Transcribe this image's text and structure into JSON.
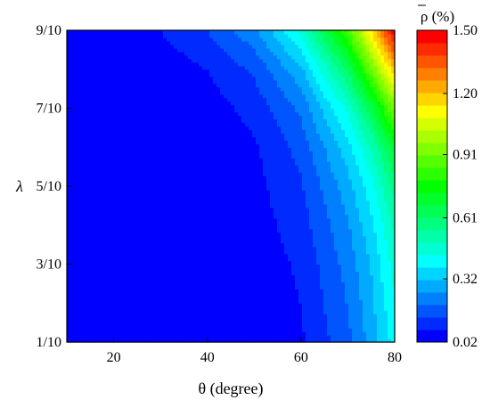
{
  "chart_data": {
    "type": "contour",
    "title": "",
    "xlabel": "θ (degree)",
    "ylabel": "λ",
    "xlim": [
      10,
      80
    ],
    "ylim": [
      0.1,
      0.9
    ],
    "x_ticks": [
      20,
      40,
      60,
      80
    ],
    "x_tick_labels": [
      "20",
      "40",
      "60",
      "80"
    ],
    "y_ticks": [
      0.1,
      0.3,
      0.5,
      0.7,
      0.9
    ],
    "y_tick_labels": [
      "1/10",
      "3/10",
      "5/10",
      "7/10",
      "9/10"
    ],
    "x": [
      10,
      20,
      30,
      40,
      50,
      60,
      70,
      75,
      80
    ],
    "y": [
      0.1,
      0.2,
      0.3,
      0.4,
      0.5,
      0.6,
      0.7,
      0.8,
      0.9
    ],
    "z": [
      [
        0.0,
        0.0,
        0.01,
        0.02,
        0.03,
        0.07,
        0.18,
        0.28,
        0.4
      ],
      [
        0.0,
        0.0,
        0.01,
        0.02,
        0.04,
        0.08,
        0.2,
        0.3,
        0.43
      ],
      [
        0.0,
        0.0,
        0.01,
        0.02,
        0.04,
        0.09,
        0.22,
        0.32,
        0.46
      ],
      [
        0.0,
        0.0,
        0.01,
        0.03,
        0.05,
        0.11,
        0.25,
        0.36,
        0.51
      ],
      [
        0.0,
        0.01,
        0.01,
        0.03,
        0.06,
        0.13,
        0.29,
        0.41,
        0.58
      ],
      [
        0.0,
        0.01,
        0.02,
        0.04,
        0.07,
        0.16,
        0.35,
        0.5,
        0.7
      ],
      [
        0.01,
        0.01,
        0.02,
        0.05,
        0.1,
        0.21,
        0.45,
        0.65,
        0.92
      ],
      [
        0.01,
        0.02,
        0.04,
        0.08,
        0.15,
        0.3,
        0.62,
        0.9,
        1.2
      ],
      [
        0.02,
        0.05,
        0.08,
        0.14,
        0.24,
        0.45,
        0.85,
        1.15,
        1.5
      ]
    ],
    "zlim": [
      0.02,
      1.5
    ],
    "colorbar": {
      "title": "ρ (%)",
      "title_overbar": "ρ",
      "ticks": [
        0.02,
        0.32,
        0.61,
        0.91,
        1.2,
        1.5
      ],
      "tick_labels": [
        "0.02",
        "0.32",
        "0.61",
        "0.91",
        "1.20",
        "1.50"
      ],
      "levels": 25
    },
    "colormap": [
      "#0000ff",
      "#0080ff",
      "#00ffff",
      "#00ff80",
      "#00ff00",
      "#80ff00",
      "#ffff00",
      "#ff8000",
      "#ff0000"
    ]
  }
}
